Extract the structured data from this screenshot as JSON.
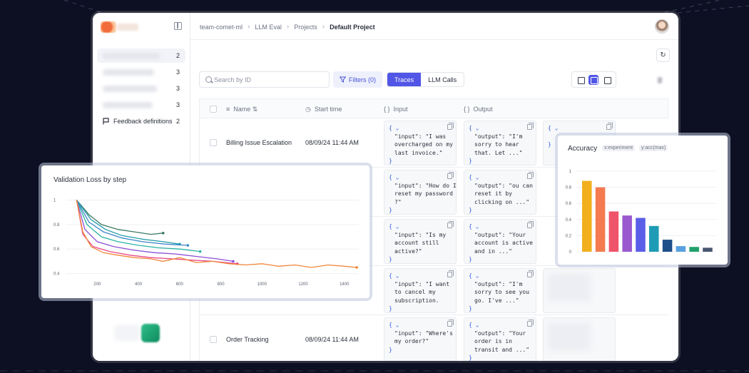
{
  "breadcrumb": {
    "items": [
      "team-comet-ml",
      "LLM Eval",
      "Projects"
    ],
    "current": "Default Project"
  },
  "sidebar": {
    "items": [
      {
        "count": "2"
      },
      {
        "count": "3"
      },
      {
        "count": "3"
      },
      {
        "count": "3"
      },
      {
        "label": "Feedback definitions",
        "count": "2"
      }
    ]
  },
  "toolbar": {
    "search_placeholder": "Search by ID",
    "filters_label": "Filters (0)",
    "tab_traces": "Traces",
    "tab_llm_calls": "LLM Calls",
    "refresh_icon": "refresh-icon"
  },
  "table": {
    "headers": {
      "name": "Name",
      "start_time": "Start time",
      "input": "Input",
      "output": "Output"
    },
    "rows": [
      {
        "name": "Billing Issue Escalation",
        "time": "08/09/24 11:44 AM",
        "input": "\"input\": \"I was\novercharged on my\nlast invoice.\"",
        "output": "\"output\": \"I'm\nsorry to hear\nthat. Let ...\""
      },
      {
        "name": "",
        "time": "",
        "input": "\"input\": \"How do I\nreset my password\n?\"",
        "output": "\"output\": \"ou can\nreset it by\nclicking on ...\""
      },
      {
        "name": "",
        "time": "",
        "input": "\"input\": \"Is my\naccount still\nactive?\"",
        "output": "\"output\": \"Your\naccount is active\nand in ...\""
      },
      {
        "name": "",
        "time": "",
        "input": "\"input\": \"I want\nto cancel my\nsubscription.",
        "output": "\"output\": \"I'm\nsorry to see you\ngo. I've ...\""
      },
      {
        "name": "Order Tracking",
        "time": "08/09/24 11:44 AM",
        "input": "\"input\": \"Where's\nmy order?\"",
        "output": "\"output\": \"Your\norder is in\ntransit and ...\""
      }
    ]
  },
  "loss_chart": {
    "title": "Validation Loss by step",
    "chart_data": {
      "type": "line",
      "title": "Validation Loss by step",
      "xlim": [
        50,
        1470
      ],
      "ylim": [
        0.38,
        1.02
      ],
      "xticks": [
        200,
        400,
        600,
        800,
        1000,
        1200,
        1400
      ],
      "yticks": [
        0.4,
        0.6,
        0.8,
        1
      ],
      "series": [
        {
          "color": "#3d7a62",
          "points": [
            [
              100,
              1.0
            ],
            [
              160,
              0.88
            ],
            [
              220,
              0.8
            ],
            [
              300,
              0.76
            ],
            [
              380,
              0.74
            ],
            [
              460,
              0.72
            ],
            [
              520,
              0.73
            ]
          ]
        },
        {
          "color": "#1f9aa8",
          "points": [
            [
              100,
              1.0
            ],
            [
              170,
              0.84
            ],
            [
              240,
              0.76
            ],
            [
              320,
              0.71
            ],
            [
              420,
              0.68
            ],
            [
              520,
              0.66
            ],
            [
              600,
              0.64
            ]
          ]
        },
        {
          "color": "#3d87c7",
          "points": [
            [
              100,
              1.0
            ],
            [
              160,
              0.82
            ],
            [
              230,
              0.74
            ],
            [
              320,
              0.69
            ],
            [
              420,
              0.66
            ],
            [
              530,
              0.64
            ],
            [
              640,
              0.63
            ]
          ]
        },
        {
          "color": "#2ab3a3",
          "points": [
            [
              100,
              1.0
            ],
            [
              150,
              0.8
            ],
            [
              220,
              0.7
            ],
            [
              300,
              0.66
            ],
            [
              400,
              0.63
            ],
            [
              500,
              0.61
            ],
            [
              600,
              0.6
            ],
            [
              700,
              0.58
            ]
          ]
        },
        {
          "color": "#8b4fd6",
          "points": [
            [
              100,
              1.0
            ],
            [
              140,
              0.76
            ],
            [
              200,
              0.66
            ],
            [
              280,
              0.62
            ],
            [
              380,
              0.59
            ],
            [
              480,
              0.57
            ],
            [
              580,
              0.56
            ],
            [
              680,
              0.54
            ],
            [
              780,
              0.52
            ],
            [
              860,
              0.5
            ]
          ]
        },
        {
          "color": "#e84a8a",
          "points": [
            [
              100,
              1.0
            ],
            [
              130,
              0.72
            ],
            [
              180,
              0.62
            ],
            [
              260,
              0.58
            ],
            [
              360,
              0.55
            ],
            [
              460,
              0.53
            ],
            [
              560,
              0.52
            ],
            [
              660,
              0.51
            ],
            [
              760,
              0.5
            ],
            [
              880,
              0.48
            ]
          ]
        },
        {
          "color": "#f0863a",
          "points": [
            [
              100,
              1.0
            ],
            [
              130,
              0.74
            ],
            [
              170,
              0.62
            ],
            [
              230,
              0.57
            ],
            [
              300,
              0.55
            ],
            [
              380,
              0.53
            ],
            [
              460,
              0.52
            ],
            [
              520,
              0.5
            ],
            [
              600,
              0.53
            ],
            [
              680,
              0.49
            ],
            [
              760,
              0.5
            ],
            [
              840,
              0.48
            ],
            [
              920,
              0.47
            ],
            [
              1000,
              0.48
            ],
            [
              1080,
              0.46
            ],
            [
              1160,
              0.47
            ],
            [
              1240,
              0.45
            ],
            [
              1320,
              0.47
            ],
            [
              1400,
              0.46
            ],
            [
              1460,
              0.45
            ]
          ]
        }
      ]
    }
  },
  "accuracy_chart": {
    "title": "Accuracy",
    "tag_x": "x:experiment",
    "tag_y": "y:acc(max)",
    "chart_data": {
      "type": "bar",
      "title": "Accuracy",
      "ylim": [
        0,
        1
      ],
      "yticks": [
        0,
        0.2,
        0.4,
        0.6,
        0.8,
        1
      ],
      "values": [
        0.88,
        0.8,
        0.5,
        0.45,
        0.42,
        0.32,
        0.15,
        0.07,
        0.06,
        0.05
      ],
      "colors": [
        "#f2b01e",
        "#f47b4f",
        "#f0546a",
        "#9b59d0",
        "#5b5ee8",
        "#1f9cb5",
        "#1f4f8a",
        "#5aa0e0",
        "#22a06b",
        "#4a5670"
      ]
    }
  }
}
